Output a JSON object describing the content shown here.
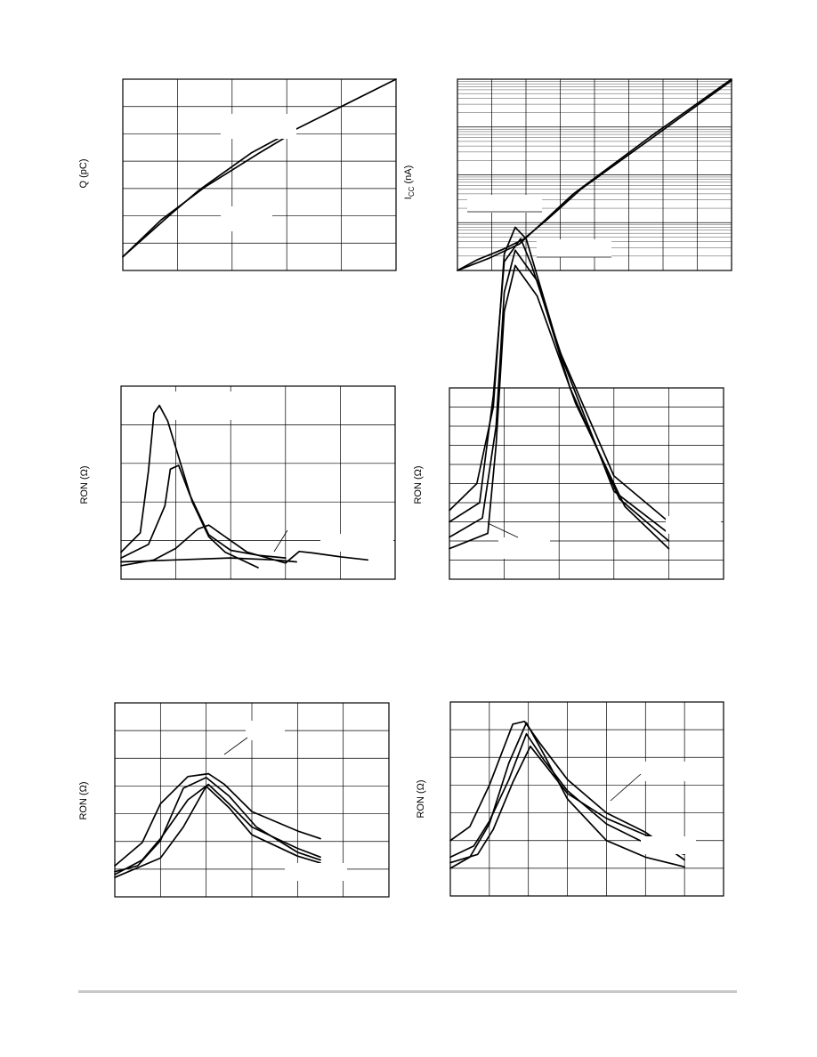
{
  "chart_data": [
    {
      "type": "line",
      "ylabel": "Q (pC)",
      "grid": true,
      "series": [
        {
          "values": [
            [
              0,
              0.5
            ],
            [
              0.9,
              2.1
            ],
            [
              1.4,
              2.95
            ],
            [
              2.35,
              4.3
            ],
            [
              3.0,
              5.0
            ],
            [
              5.0,
              7.0
            ]
          ]
        },
        {
          "values": [
            [
              0,
              0.5
            ],
            [
              0.7,
              1.85
            ],
            [
              1.5,
              3.05
            ],
            [
              2.5,
              4.3
            ],
            [
              3.0,
              4.9
            ]
          ]
        }
      ]
    },
    {
      "type": "line",
      "ylabel": "I",
      "ylabel_sub": "CC",
      "ylabel_suffix": " (nA)",
      "log_y": true,
      "grid": true,
      "series": [
        {
          "values": [
            [
              0,
              0.0
            ],
            [
              0.8,
              0.25
            ],
            [
              1.6,
              0.55
            ],
            [
              2.2,
              1.0
            ],
            [
              3.0,
              1.6
            ],
            [
              4.0,
              2.2
            ],
            [
              5.0,
              2.8
            ],
            [
              7.1,
              4.0
            ]
          ]
        },
        {
          "values": [
            [
              0,
              0.0
            ],
            [
              0.5,
              0.22
            ],
            [
              1.2,
              0.45
            ],
            [
              1.7,
              0.65
            ],
            [
              2.3,
              1.05
            ],
            [
              3.2,
              1.7
            ],
            [
              7.1,
              3.97
            ]
          ]
        }
      ]
    },
    {
      "type": "line",
      "ylabel": "RON (Ω)",
      "grid": true,
      "series": [
        {
          "values": [
            [
              0,
              0.7
            ],
            [
              0.35,
              1.2
            ],
            [
              0.5,
              2.8
            ],
            [
              0.6,
              4.3
            ],
            [
              0.7,
              4.5
            ],
            [
              0.85,
              4.1
            ],
            [
              1.3,
              2.0
            ],
            [
              1.6,
              1.1
            ],
            [
              1.9,
              0.7
            ],
            [
              2.5,
              0.3
            ]
          ]
        },
        {
          "values": [
            [
              0,
              0.55
            ],
            [
              0.5,
              0.9
            ],
            [
              0.8,
              1.9
            ],
            [
              0.9,
              2.85
            ],
            [
              1.05,
              2.95
            ],
            [
              1.25,
              2.2
            ],
            [
              1.6,
              1.15
            ],
            [
              2.0,
              0.75
            ],
            [
              2.5,
              0.62
            ],
            [
              3.0,
              0.55
            ]
          ]
        },
        {
          "values": [
            [
              0,
              0.35
            ],
            [
              0.6,
              0.5
            ],
            [
              1.0,
              0.8
            ],
            [
              1.4,
              1.3
            ],
            [
              1.6,
              1.4
            ],
            [
              1.8,
              1.2
            ],
            [
              2.3,
              0.7
            ],
            [
              2.8,
              0.5
            ],
            [
              3.2,
              0.45
            ]
          ]
        },
        {
          "values": [
            [
              0,
              0.45
            ],
            [
              1.0,
              0.5
            ],
            [
              2.0,
              0.55
            ],
            [
              2.8,
              0.5
            ],
            [
              3.0,
              0.42
            ],
            [
              3.25,
              0.72
            ],
            [
              3.5,
              0.68
            ],
            [
              4.0,
              0.58
            ],
            [
              4.5,
              0.5
            ]
          ]
        }
      ]
    },
    {
      "type": "line",
      "ylabel": "RON (Ω)",
      "grid": true,
      "series": [
        {
          "values": [
            [
              0,
              1.8
            ],
            [
              0.5,
              2.5
            ],
            [
              0.8,
              4.5
            ],
            [
              1.0,
              8.5
            ],
            [
              1.2,
              9.2
            ],
            [
              1.4,
              8.9
            ],
            [
              2.0,
              6.0
            ],
            [
              3.0,
              2.7
            ],
            [
              4.0,
              1.5
            ]
          ]
        },
        {
          "values": [
            [
              0,
              1.5
            ],
            [
              0.55,
              2.0
            ],
            [
              0.8,
              4.8
            ],
            [
              1.0,
              8.3
            ],
            [
              1.3,
              8.9
            ],
            [
              1.5,
              8.2
            ],
            [
              2.1,
              5.6
            ],
            [
              3.0,
              2.3
            ],
            [
              4.0,
              1.2
            ]
          ]
        },
        {
          "values": [
            [
              0,
              1.1
            ],
            [
              0.6,
              1.6
            ],
            [
              0.85,
              4.0
            ],
            [
              1.0,
              7.5
            ],
            [
              1.2,
              8.6
            ],
            [
              1.6,
              7.8
            ],
            [
              2.2,
              5.0
            ],
            [
              3.1,
              2.1
            ],
            [
              4.0,
              1.0
            ]
          ]
        },
        {
          "values": [
            [
              0,
              0.8
            ],
            [
              0.7,
              1.2
            ],
            [
              0.85,
              3.5
            ],
            [
              1.0,
              7.0
            ],
            [
              1.2,
              8.2
            ],
            [
              1.6,
              7.4
            ],
            [
              2.3,
              4.6
            ],
            [
              3.2,
              1.9
            ],
            [
              4.0,
              0.8
            ]
          ]
        }
      ]
    },
    {
      "type": "line",
      "ylabel": "RON (Ω)",
      "grid": true,
      "series": [
        {
          "values": [
            [
              0,
              1.6
            ],
            [
              0.6,
              2.8
            ],
            [
              1.0,
              4.8
            ],
            [
              1.6,
              6.2
            ],
            [
              2.05,
              6.35
            ],
            [
              2.4,
              5.8
            ],
            [
              3.0,
              4.4
            ],
            [
              4.0,
              3.4
            ],
            [
              4.5,
              3.0
            ]
          ]
        },
        {
          "values": [
            [
              0,
              1.3
            ],
            [
              0.5,
              1.6
            ],
            [
              1.0,
              2.9
            ],
            [
              1.5,
              5.6
            ],
            [
              2.0,
              6.15
            ],
            [
              2.5,
              5.2
            ],
            [
              3.1,
              3.6
            ],
            [
              4.0,
              2.3
            ],
            [
              4.5,
              1.9
            ]
          ]
        },
        {
          "values": [
            [
              0,
              1.15
            ],
            [
              0.6,
              1.9
            ],
            [
              1.0,
              3.0
            ],
            [
              1.6,
              5.0
            ],
            [
              2.05,
              5.8
            ],
            [
              2.5,
              4.8
            ],
            [
              3.0,
              3.6
            ],
            [
              4.0,
              2.5
            ],
            [
              4.5,
              2.05
            ]
          ]
        },
        {
          "values": [
            [
              0,
              1.0
            ],
            [
              1.0,
              2.0
            ],
            [
              1.5,
              3.6
            ],
            [
              2.0,
              5.7
            ],
            [
              2.5,
              4.6
            ],
            [
              3.0,
              3.2
            ],
            [
              4.0,
              2.1
            ],
            [
              4.5,
              1.75
            ]
          ]
        }
      ]
    },
    {
      "type": "line",
      "ylabel": "RON (Ω)",
      "grid": true,
      "series": [
        {
          "values": [
            [
              0,
              2.0
            ],
            [
              0.5,
              2.5
            ],
            [
              1.0,
              4.0
            ],
            [
              1.6,
              6.2
            ],
            [
              1.9,
              6.3
            ],
            [
              2.3,
              5.5
            ],
            [
              3.0,
              4.2
            ],
            [
              4.0,
              3.0
            ],
            [
              5.0,
              2.3
            ],
            [
              6.0,
              1.3
            ]
          ]
        },
        {
          "values": [
            [
              0,
              1.0
            ],
            [
              0.5,
              1.4
            ],
            [
              1.0,
              2.6
            ],
            [
              1.5,
              4.8
            ],
            [
              1.95,
              6.25
            ],
            [
              2.4,
              5.1
            ],
            [
              3.0,
              3.5
            ],
            [
              4.0,
              2.0
            ],
            [
              5.0,
              1.4
            ],
            [
              6.0,
              1.05
            ]
          ]
        },
        {
          "values": [
            [
              0,
              1.4
            ],
            [
              0.6,
              1.8
            ],
            [
              1.0,
              2.7
            ],
            [
              1.5,
              4.2
            ],
            [
              1.95,
              5.85
            ],
            [
              2.4,
              4.9
            ],
            [
              3.0,
              3.8
            ],
            [
              4.0,
              2.6
            ],
            [
              5.0,
              1.9
            ],
            [
              6.0,
              1.5
            ]
          ]
        },
        {
          "values": [
            [
              0,
              1.2
            ],
            [
              0.7,
              1.5
            ],
            [
              1.1,
              2.4
            ],
            [
              1.6,
              4.1
            ],
            [
              2.05,
              5.4
            ],
            [
              2.5,
              4.6
            ],
            [
              3.0,
              3.7
            ],
            [
              4.0,
              2.8
            ],
            [
              5.0,
              2.2
            ],
            [
              6.0,
              1.8
            ]
          ]
        }
      ]
    }
  ]
}
